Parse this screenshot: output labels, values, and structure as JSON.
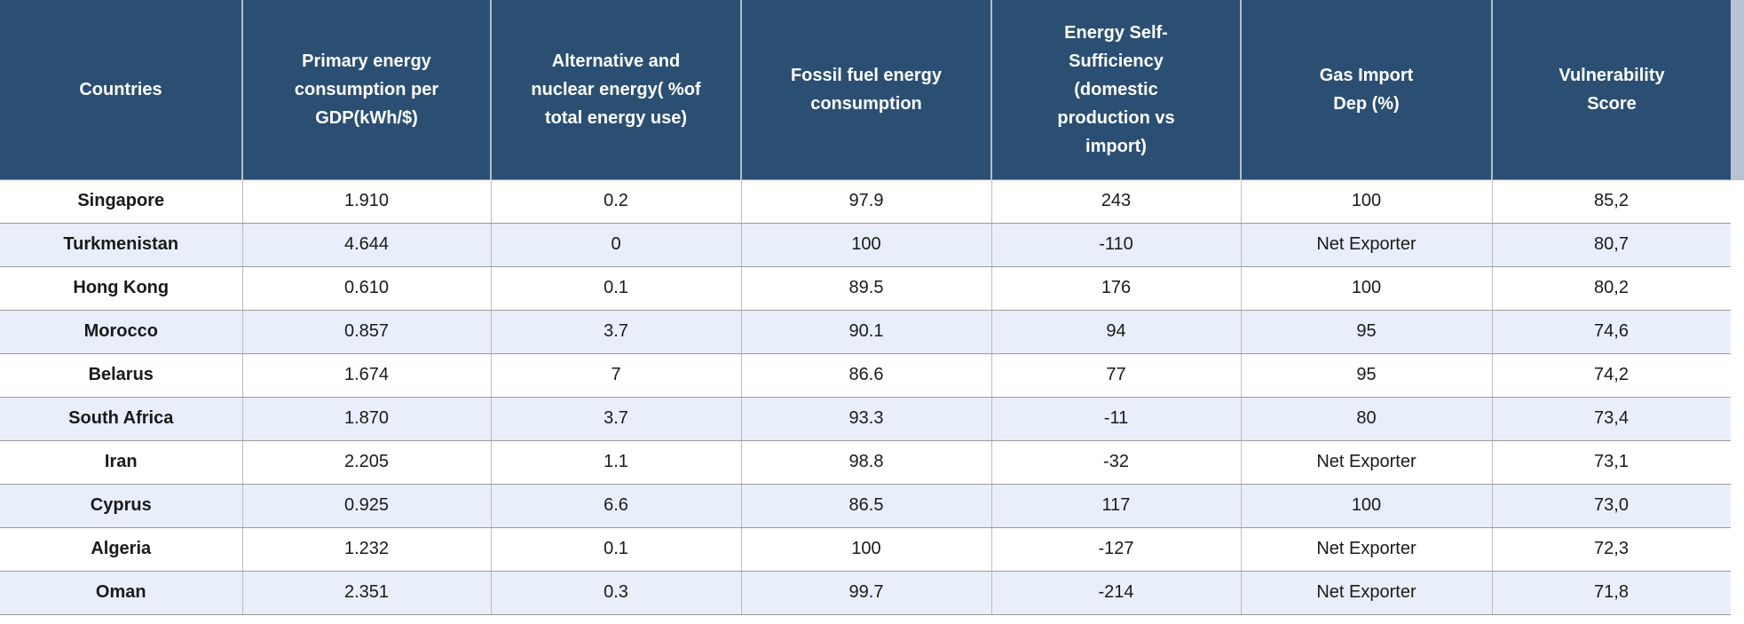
{
  "colors": {
    "header_bg": "#2b4f72",
    "row_alt_bg": "#e9eefb",
    "text": "#1a1a1a",
    "gutter_top": "#b7c3d0"
  },
  "table": {
    "columns": [
      "Countries",
      "Primary energy\nconsumption per\nGDP(kWh/$)",
      "Alternative and\nnuclear energy( %of\ntotal energy use)",
      "Fossil fuel energy\nconsumption",
      "Energy Self-\nSufficiency\n(domestic\nproduction vs\nimport)",
      "Gas Import\nDep (%)",
      "Vulnerability\nScore"
    ],
    "rows": [
      [
        "Singapore",
        "1.910",
        "0.2",
        "97.9",
        "243",
        "100",
        "85,2"
      ],
      [
        "Turkmenistan",
        "4.644",
        "0",
        "100",
        "-110",
        "Net Exporter",
        "80,7"
      ],
      [
        "Hong Kong",
        "0.610",
        "0.1",
        "89.5",
        "176",
        "100",
        "80,2"
      ],
      [
        "Morocco",
        "0.857",
        "3.7",
        "90.1",
        "94",
        "95",
        "74,6"
      ],
      [
        "Belarus",
        "1.674",
        "7",
        "86.6",
        "77",
        "95",
        "74,2"
      ],
      [
        "South Africa",
        "1.870",
        "3.7",
        "93.3",
        "-11",
        "80",
        "73,4"
      ],
      [
        "Iran",
        "2.205",
        "1.1",
        "98.8",
        "-32",
        "Net Exporter",
        "73,1"
      ],
      [
        "Cyprus",
        "0.925",
        "6.6",
        "86.5",
        "117",
        "100",
        "73,0"
      ],
      [
        "Algeria",
        "1.232",
        "0.1",
        "100",
        "-127",
        "Net Exporter",
        "72,3"
      ],
      [
        "Oman",
        "2.351",
        "0.3",
        "99.7",
        "-214",
        "Net Exporter",
        "71,8"
      ]
    ]
  }
}
